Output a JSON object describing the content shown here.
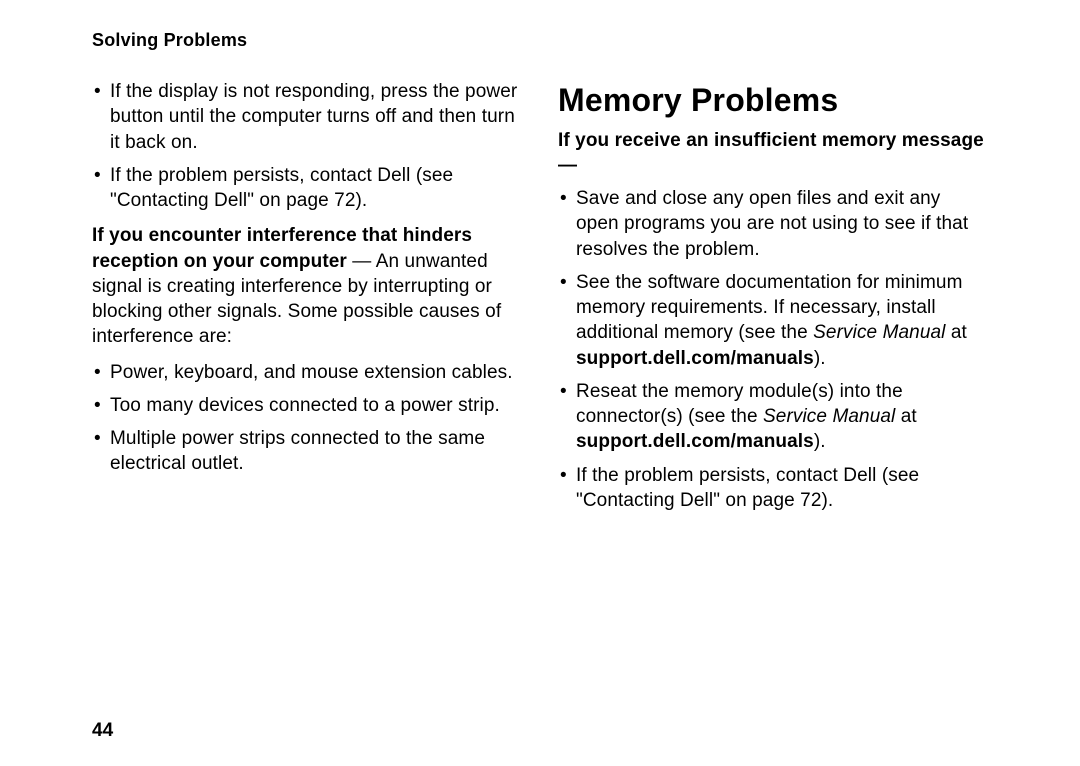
{
  "page": {
    "running_head": "Solving Problems",
    "page_number": "44"
  },
  "left": {
    "bullets_top": [
      "If the display is not responding, press the power button until the computer turns off and then turn it back on.",
      "If the problem persists, contact Dell (see \"Contacting Dell\" on page 72)."
    ],
    "interference_lead_bold": "If you encounter interference that hinders reception on your computer",
    "interference_lead_rest": " — An unwanted signal is creating interference by interrupting or blocking other signals. Some possible causes of interference are:",
    "bullets_bottom": [
      "Power, keyboard, and mouse extension cables.",
      "Too many devices connected to a power strip.",
      "Multiple power strips connected to the same electrical outlet."
    ]
  },
  "right": {
    "title": "Memory Problems",
    "subhead": "If you receive an insufficient memory message —",
    "items": {
      "b1": "Save and close any open files and exit any open programs you are not using to see if that resolves the problem.",
      "b2_a": "See the software documentation for minimum memory requirements. If necessary, install additional memory (see the ",
      "b2_svc": "Service Manual",
      "b2_b": " at ",
      "b2_url": "support.dell.com/manuals",
      "b2_c": ").",
      "b3_a": "Reseat the memory module(s) into the connector(s) (see the ",
      "b3_svc": "Service Manual",
      "b3_b": " at ",
      "b3_url": "support.dell.com/manuals",
      "b3_c": ").",
      "b4": "If the problem persists, contact Dell (see \"Contacting Dell\" on page 72)."
    }
  }
}
